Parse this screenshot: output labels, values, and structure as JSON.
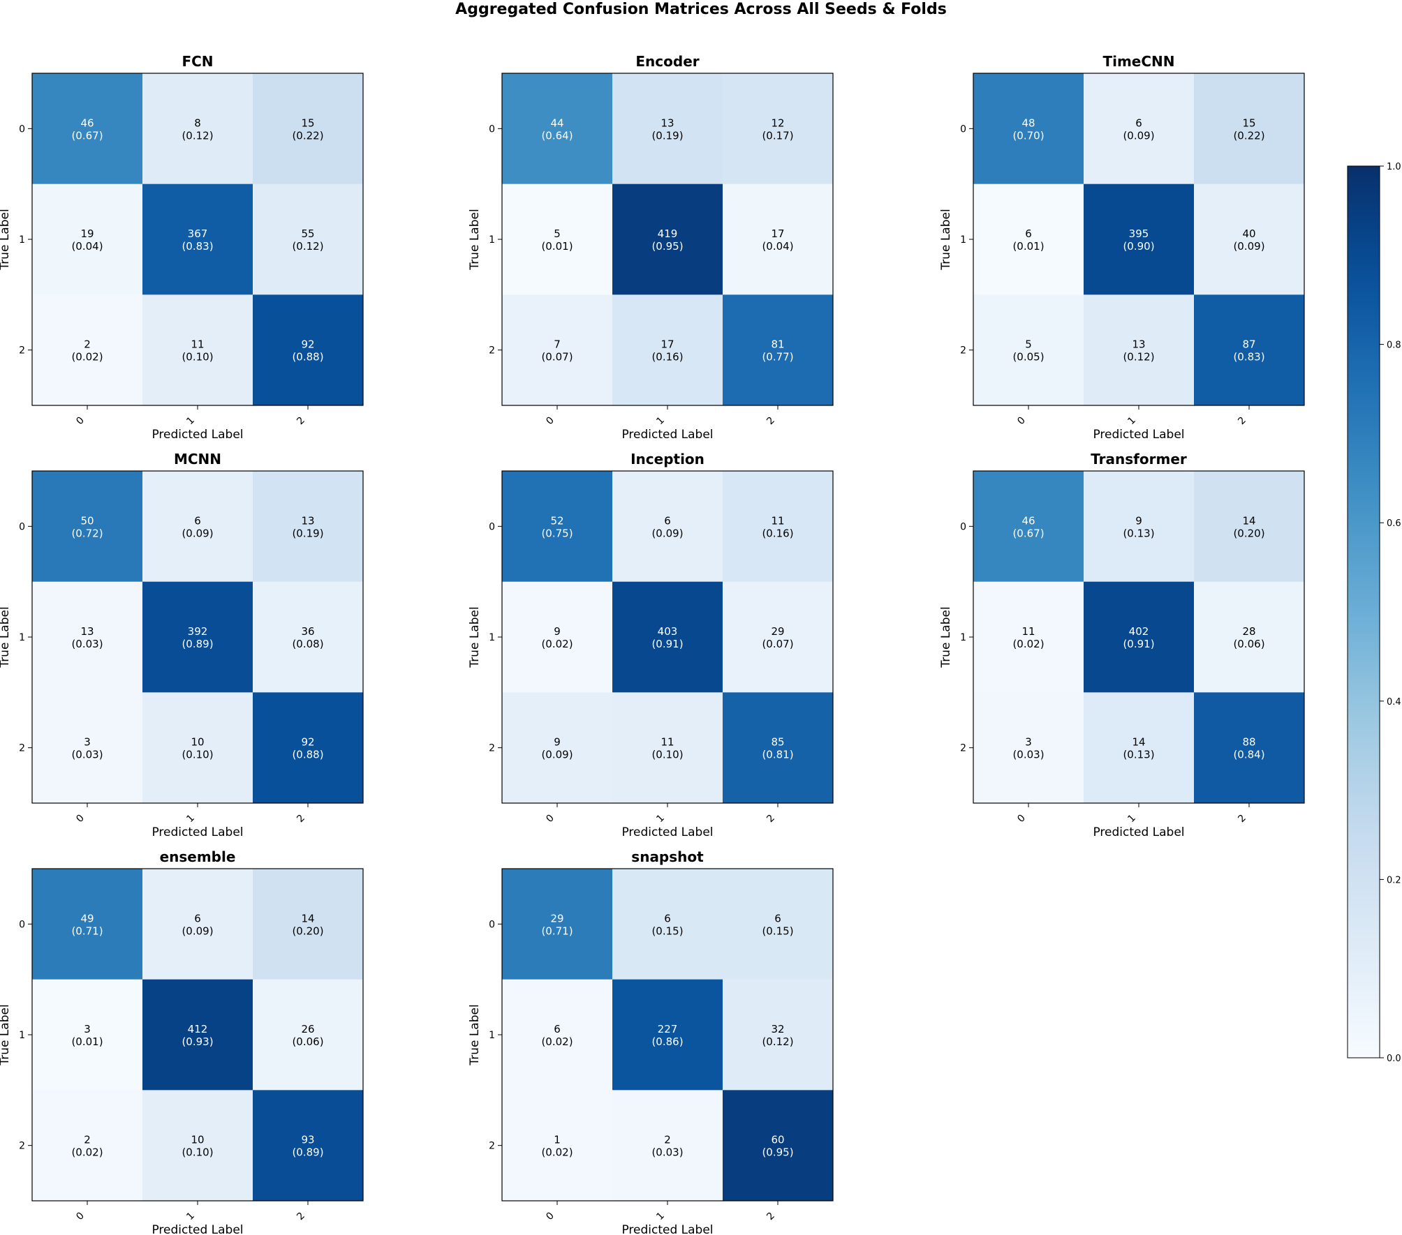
{
  "figure_title": "Aggregated Confusion Matrices Across All Seeds & Folds",
  "colorbar": {
    "colormap": "Blues",
    "ticks": [
      "0.0",
      "0.2",
      "0.4",
      "0.6",
      "0.8",
      "1.0"
    ],
    "tick_values": [
      0.0,
      0.2,
      0.4,
      0.6,
      0.8,
      1.0
    ]
  },
  "chart_data": [
    {
      "type": "heatmap",
      "title": "FCN",
      "xlabel": "Predicted Label",
      "ylabel": "True Label",
      "x_ticks": [
        "0",
        "1",
        "2"
      ],
      "y_ticks": [
        "0",
        "1",
        "2"
      ],
      "counts": [
        [
          46,
          8,
          15
        ],
        [
          19,
          367,
          55
        ],
        [
          2,
          11,
          92
        ]
      ],
      "normalized": [
        "0.67",
        "0.12",
        "0.22",
        "0.04",
        "0.83",
        "0.12",
        "0.02",
        "0.10",
        "0.88"
      ]
    },
    {
      "type": "heatmap",
      "title": "Encoder",
      "xlabel": "Predicted Label",
      "ylabel": "True Label",
      "x_ticks": [
        "0",
        "1",
        "2"
      ],
      "y_ticks": [
        "0",
        "1",
        "2"
      ],
      "counts": [
        [
          44,
          13,
          12
        ],
        [
          5,
          419,
          17
        ],
        [
          7,
          17,
          81
        ]
      ],
      "normalized": [
        "0.64",
        "0.19",
        "0.17",
        "0.01",
        "0.95",
        "0.04",
        "0.07",
        "0.16",
        "0.77"
      ]
    },
    {
      "type": "heatmap",
      "title": "TimeCNN",
      "xlabel": "Predicted Label",
      "ylabel": "True Label",
      "x_ticks": [
        "0",
        "1",
        "2"
      ],
      "y_ticks": [
        "0",
        "1",
        "2"
      ],
      "counts": [
        [
          48,
          6,
          15
        ],
        [
          6,
          395,
          40
        ],
        [
          5,
          13,
          87
        ]
      ],
      "normalized": [
        "0.70",
        "0.09",
        "0.22",
        "0.01",
        "0.90",
        "0.09",
        "0.05",
        "0.12",
        "0.83"
      ]
    },
    {
      "type": "heatmap",
      "title": "MCNN",
      "xlabel": "Predicted Label",
      "ylabel": "True Label",
      "x_ticks": [
        "0",
        "1",
        "2"
      ],
      "y_ticks": [
        "0",
        "1",
        "2"
      ],
      "counts": [
        [
          50,
          6,
          13
        ],
        [
          13,
          392,
          36
        ],
        [
          3,
          10,
          92
        ]
      ],
      "normalized": [
        "0.72",
        "0.09",
        "0.19",
        "0.03",
        "0.89",
        "0.08",
        "0.03",
        "0.10",
        "0.88"
      ]
    },
    {
      "type": "heatmap",
      "title": "Inception",
      "xlabel": "Predicted Label",
      "ylabel": "True Label",
      "x_ticks": [
        "0",
        "1",
        "2"
      ],
      "y_ticks": [
        "0",
        "1",
        "2"
      ],
      "counts": [
        [
          52,
          6,
          11
        ],
        [
          9,
          403,
          29
        ],
        [
          9,
          11,
          85
        ]
      ],
      "normalized": [
        "0.75",
        "0.09",
        "0.16",
        "0.02",
        "0.91",
        "0.07",
        "0.09",
        "0.10",
        "0.81"
      ]
    },
    {
      "type": "heatmap",
      "title": "Transformer",
      "xlabel": "Predicted Label",
      "ylabel": "True Label",
      "x_ticks": [
        "0",
        "1",
        "2"
      ],
      "y_ticks": [
        "0",
        "1",
        "2"
      ],
      "counts": [
        [
          46,
          9,
          14
        ],
        [
          11,
          402,
          28
        ],
        [
          3,
          14,
          88
        ]
      ],
      "normalized": [
        "0.67",
        "0.13",
        "0.20",
        "0.02",
        "0.91",
        "0.06",
        "0.03",
        "0.13",
        "0.84"
      ]
    },
    {
      "type": "heatmap",
      "title": "ensemble",
      "xlabel": "Predicted Label",
      "ylabel": "True Label",
      "x_ticks": [
        "0",
        "1",
        "2"
      ],
      "y_ticks": [
        "0",
        "1",
        "2"
      ],
      "counts": [
        [
          49,
          6,
          14
        ],
        [
          3,
          412,
          26
        ],
        [
          2,
          10,
          93
        ]
      ],
      "normalized": [
        "0.71",
        "0.09",
        "0.20",
        "0.01",
        "0.93",
        "0.06",
        "0.02",
        "0.10",
        "0.89"
      ]
    },
    {
      "type": "heatmap",
      "title": "snapshot",
      "xlabel": "Predicted Label",
      "ylabel": "True Label",
      "x_ticks": [
        "0",
        "1",
        "2"
      ],
      "y_ticks": [
        "0",
        "1",
        "2"
      ],
      "counts": [
        [
          29,
          6,
          6
        ],
        [
          6,
          227,
          32
        ],
        [
          1,
          2,
          60
        ]
      ],
      "normalized": [
        "0.71",
        "0.15",
        "0.15",
        "0.02",
        "0.86",
        "0.12",
        "0.02",
        "0.03",
        "0.95"
      ]
    }
  ]
}
